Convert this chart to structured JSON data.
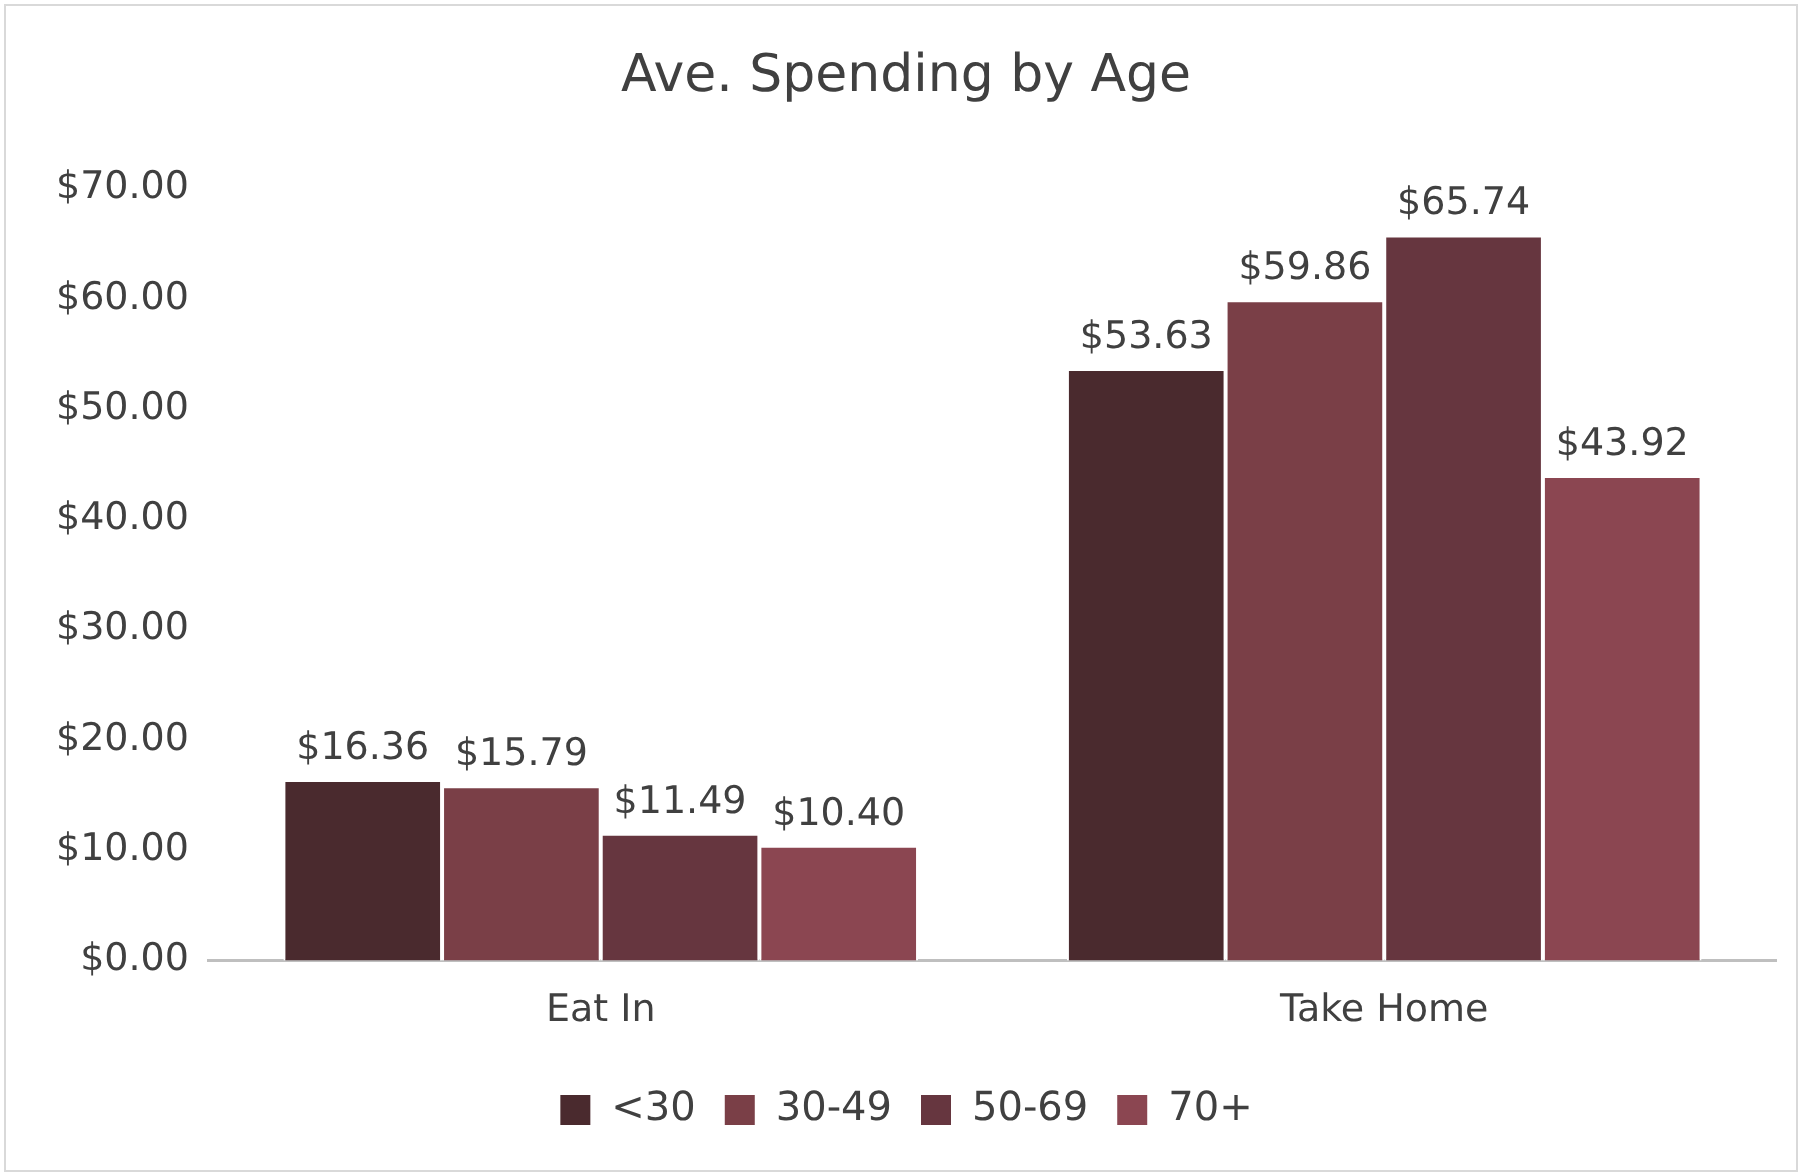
{
  "chart_data": {
    "type": "bar",
    "title": "Ave. Spending by Age",
    "categories": [
      "Eat In",
      "Take Home"
    ],
    "series": [
      {
        "name": "<30",
        "color": "#4a2a2e",
        "values": [
          16.36,
          53.63
        ],
        "value_labels": [
          "$16.36",
          "$53.63"
        ]
      },
      {
        "name": "30-49",
        "color": "#7a3f47",
        "values": [
          15.79,
          59.86
        ],
        "value_labels": [
          "$15.79",
          "$59.86"
        ]
      },
      {
        "name": "50-69",
        "color": "#66363f",
        "values": [
          11.49,
          65.74
        ],
        "value_labels": [
          "$11.49",
          "$65.74"
        ]
      },
      {
        "name": "70+",
        "color": "#8b4651",
        "values": [
          10.4,
          43.92
        ],
        "value_labels": [
          "$10.40",
          "$43.92"
        ]
      }
    ],
    "ylim": [
      0,
      70
    ],
    "yticks": [
      {
        "value": 0,
        "label": "$0.00"
      },
      {
        "value": 10,
        "label": "$10.00"
      },
      {
        "value": 20,
        "label": "$20.00"
      },
      {
        "value": 30,
        "label": "$30.00"
      },
      {
        "value": 40,
        "label": "$40.00"
      },
      {
        "value": 50,
        "label": "$50.00"
      },
      {
        "value": 60,
        "label": "$60.00"
      },
      {
        "value": 70,
        "label": "$70.00"
      }
    ],
    "grid": false,
    "legend": "bottom"
  }
}
